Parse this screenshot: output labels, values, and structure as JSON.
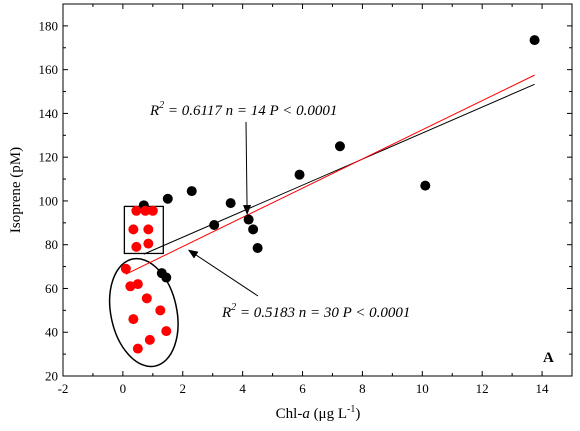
{
  "chart_data": {
    "type": "scatter",
    "xlabel": "Chl-a (μg L⁻¹)",
    "ylabel": "Isoprene (pM)",
    "xlim": [
      -2,
      15
    ],
    "ylim": [
      20,
      190
    ],
    "xticks": [
      -2,
      0,
      2,
      4,
      6,
      8,
      10,
      12,
      14
    ],
    "yticks": [
      20,
      40,
      60,
      80,
      100,
      120,
      140,
      160,
      180
    ],
    "panel_label": "A",
    "series": [
      {
        "color": "#000000",
        "points": [
          [
            0.7,
            98
          ],
          [
            1.5,
            101
          ],
          [
            2.3,
            104.5
          ],
          [
            3.6,
            99
          ],
          [
            3.05,
            89
          ],
          [
            4.2,
            91.5
          ],
          [
            4.35,
            87
          ],
          [
            4.5,
            78.5
          ],
          [
            1.3,
            67
          ],
          [
            1.45,
            65
          ],
          [
            5.9,
            112
          ],
          [
            7.25,
            125
          ],
          [
            10.1,
            107
          ],
          [
            13.75,
            173.5
          ]
        ]
      },
      {
        "color": "#ff0000",
        "points": [
          [
            0.45,
            95.5
          ],
          [
            0.75,
            95.5
          ],
          [
            1.0,
            95.5
          ],
          [
            0.35,
            87
          ],
          [
            0.85,
            87
          ],
          [
            0.45,
            79
          ],
          [
            0.85,
            80.5
          ],
          [
            0.1,
            69
          ],
          [
            0.25,
            61
          ],
          [
            0.5,
            62
          ],
          [
            0.8,
            55.5
          ],
          [
            0.35,
            46
          ],
          [
            1.25,
            50
          ],
          [
            1.45,
            40.5
          ],
          [
            0.9,
            36.5
          ],
          [
            0.5,
            32.5
          ]
        ]
      }
    ],
    "fits": [
      {
        "color": "#000000",
        "x": [
          0.7,
          13.75
        ],
        "y": [
          75.7,
          153.3
        ]
      },
      {
        "color": "#ff0000",
        "x": [
          0.1,
          13.75
        ],
        "y": [
          66.5,
          157.5
        ]
      }
    ],
    "annotations": [
      {
        "label_parts": [
          "R",
          "2",
          " = 0.6117  n = 14  P < 0.0001"
        ],
        "arrow_target": [
          4.15,
          94
        ]
      },
      {
        "label_parts": [
          "R",
          "2",
          " = 0.5183  n = 30  P < 0.0001"
        ],
        "arrow_target": [
          2.2,
          77.5
        ]
      }
    ],
    "grouping_shapes": [
      {
        "shape": "rectangle",
        "x": [
          0.05,
          1.35
        ],
        "y": [
          76,
          97.5
        ]
      },
      {
        "shape": "ellipse",
        "x": [
          -0.4,
          1.8
        ],
        "y": [
          24,
          74
        ]
      }
    ]
  }
}
